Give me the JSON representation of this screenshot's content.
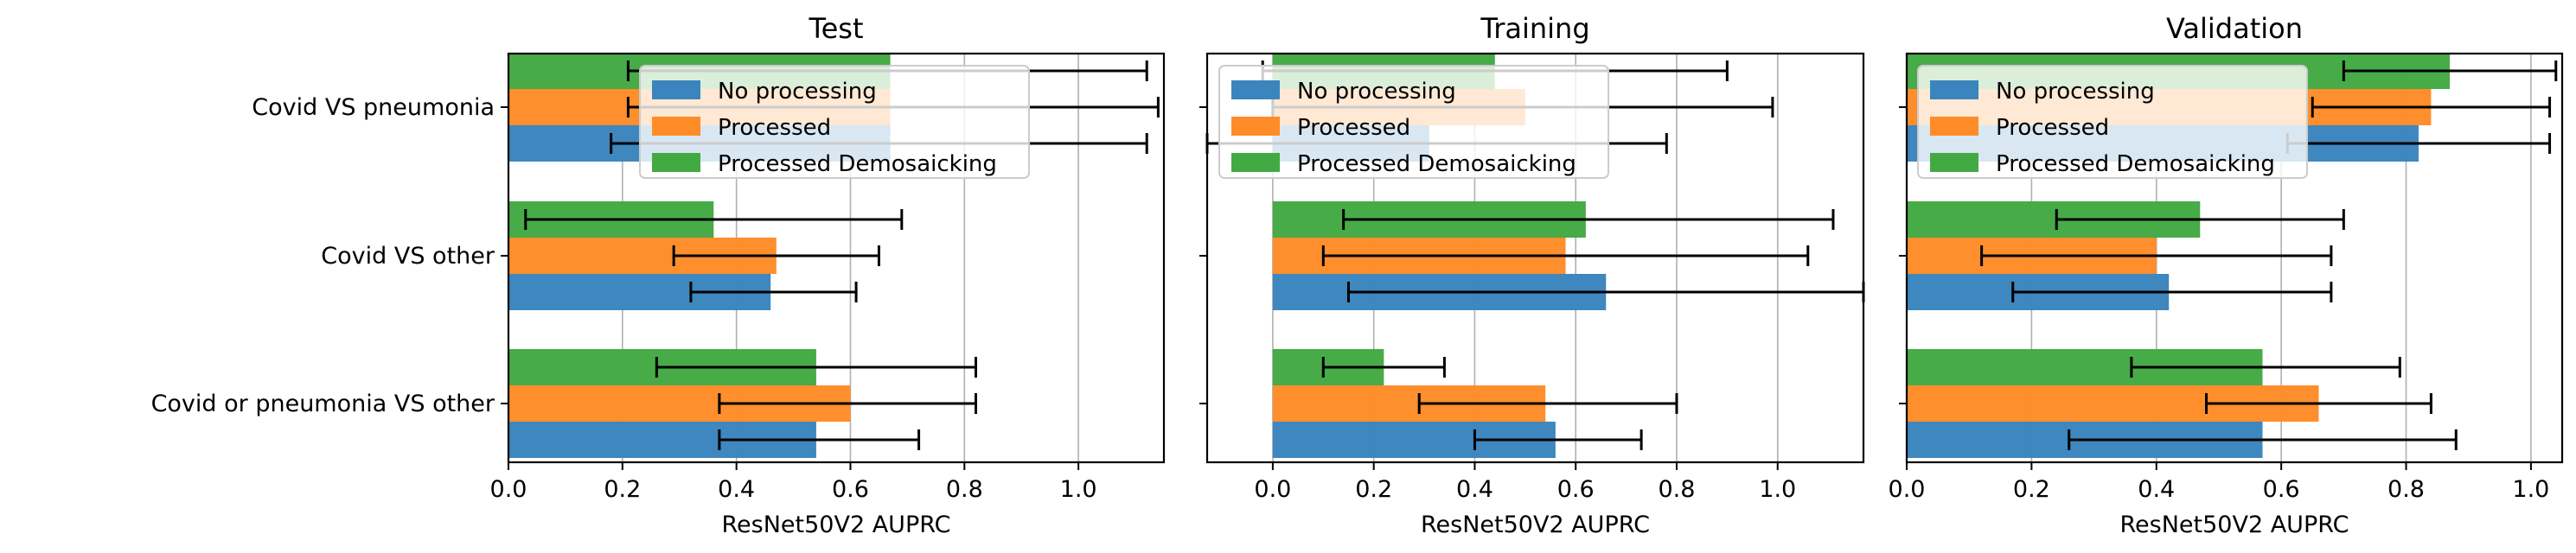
{
  "chart_data": [
    {
      "type": "bar",
      "orientation": "horizontal",
      "title": "Test",
      "xlabel": "ResNet50V2 AUPRC",
      "ylabel": "",
      "xlim": [
        0,
        1.15
      ],
      "xticks": [
        0.0,
        0.2,
        0.4,
        0.6,
        0.8,
        1.0
      ],
      "xtick_labels": [
        "0.0",
        "0.2",
        "0.4",
        "0.6",
        "0.8",
        "1.0"
      ],
      "grid": "x",
      "legend_position": "upper-center",
      "categories": [
        "Covid VS pneumonia",
        "Covid VS other",
        "Covid or pneumonia VS other"
      ],
      "series": [
        {
          "name": "No processing",
          "values": [
            0.67,
            0.46,
            0.54
          ],
          "err_low": [
            0.18,
            0.32,
            0.37
          ],
          "err_high": [
            1.12,
            0.61,
            0.72
          ]
        },
        {
          "name": "Processed",
          "values": [
            0.67,
            0.47,
            0.6
          ],
          "err_low": [
            0.21,
            0.29,
            0.37
          ],
          "err_high": [
            1.14,
            0.65,
            0.82
          ]
        },
        {
          "name": "Processed Demosaicking",
          "values": [
            0.67,
            0.36,
            0.54
          ],
          "err_low": [
            0.21,
            0.03,
            0.26
          ],
          "err_high": [
            1.12,
            0.69,
            0.82
          ]
        }
      ]
    },
    {
      "type": "bar",
      "orientation": "horizontal",
      "title": "Training",
      "xlabel": "ResNet50V2 AUPRC",
      "ylabel": "",
      "xlim": [
        -0.13,
        1.17
      ],
      "xticks": [
        0.0,
        0.2,
        0.4,
        0.6,
        0.8,
        1.0
      ],
      "xtick_labels": [
        "0.0",
        "0.2",
        "0.4",
        "0.6",
        "0.8",
        "1.0"
      ],
      "grid": "x",
      "legend_position": "upper-left",
      "categories": [
        "Covid VS pneumonia",
        "Covid VS other",
        "Covid or pneumonia VS other"
      ],
      "series": [
        {
          "name": "No processing",
          "values": [
            0.31,
            0.66,
            0.56
          ],
          "err_low": [
            -0.13,
            0.15,
            0.4
          ],
          "err_high": [
            0.78,
            1.17,
            0.73
          ]
        },
        {
          "name": "Processed",
          "values": [
            0.5,
            0.58,
            0.54
          ],
          "err_low": [
            0.0,
            0.1,
            0.29
          ],
          "err_high": [
            0.99,
            1.06,
            0.8
          ]
        },
        {
          "name": "Processed Demosaicking",
          "values": [
            0.44,
            0.62,
            0.22
          ],
          "err_low": [
            -0.02,
            0.14,
            0.1
          ],
          "err_high": [
            0.9,
            1.11,
            0.34
          ]
        }
      ]
    },
    {
      "type": "bar",
      "orientation": "horizontal",
      "title": "Validation",
      "xlabel": "ResNet50V2 AUPRC",
      "ylabel": "",
      "xlim": [
        0,
        1.05
      ],
      "xticks": [
        0.0,
        0.2,
        0.4,
        0.6,
        0.8,
        1.0
      ],
      "xtick_labels": [
        "0.0",
        "0.2",
        "0.4",
        "0.6",
        "0.8",
        "1.0"
      ],
      "grid": "x",
      "legend_position": "upper-left",
      "categories": [
        "Covid VS pneumonia",
        "Covid VS other",
        "Covid or pneumonia VS other"
      ],
      "series": [
        {
          "name": "No processing",
          "values": [
            0.82,
            0.42,
            0.57
          ],
          "err_low": [
            0.61,
            0.17,
            0.26
          ],
          "err_high": [
            1.03,
            0.68,
            0.88
          ]
        },
        {
          "name": "Processed",
          "values": [
            0.84,
            0.4,
            0.66
          ],
          "err_low": [
            0.65,
            0.12,
            0.48
          ],
          "err_high": [
            1.03,
            0.68,
            0.84
          ]
        },
        {
          "name": "Processed Demosaicking",
          "values": [
            0.87,
            0.47,
            0.57
          ],
          "err_low": [
            0.7,
            0.24,
            0.36
          ],
          "err_high": [
            1.04,
            0.7,
            0.79
          ]
        }
      ]
    }
  ],
  "colors": {
    "No processing": "#3a85be",
    "Processed": "#ff8c28",
    "Processed Demosaicking": "#43a943",
    "grid": "#b0b0b0",
    "errorbar": "#000000"
  }
}
